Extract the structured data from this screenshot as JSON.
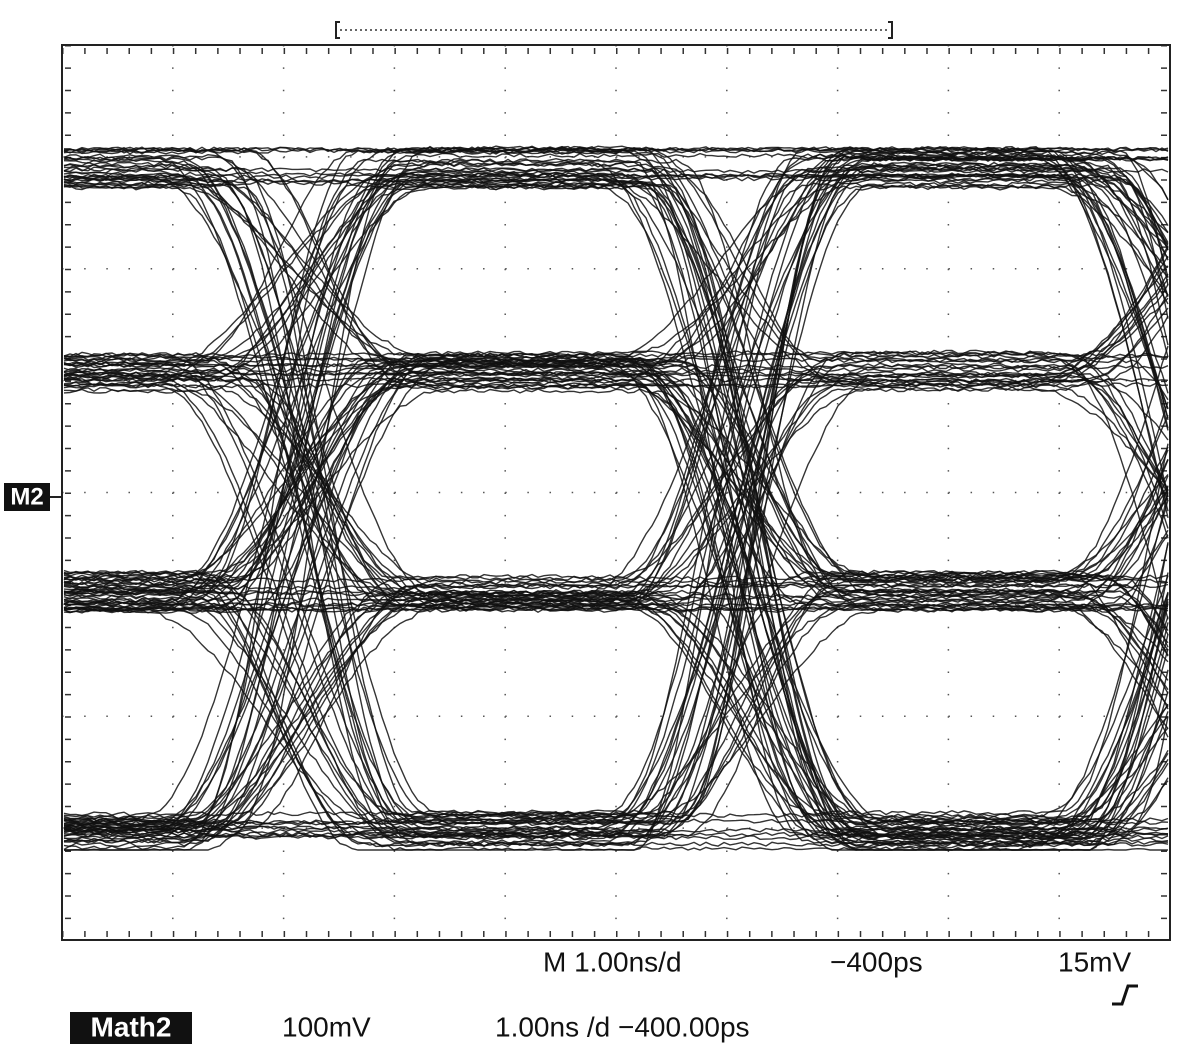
{
  "screen": {
    "marker": "M2",
    "status": {
      "timebase": "M 1.00ns/d",
      "position": "−400ps",
      "trigger_level": "15mV"
    }
  },
  "readout": {
    "channel": "Math2",
    "scale": "100mV",
    "timebase": "1.00ns /d −400.00ps"
  }
}
